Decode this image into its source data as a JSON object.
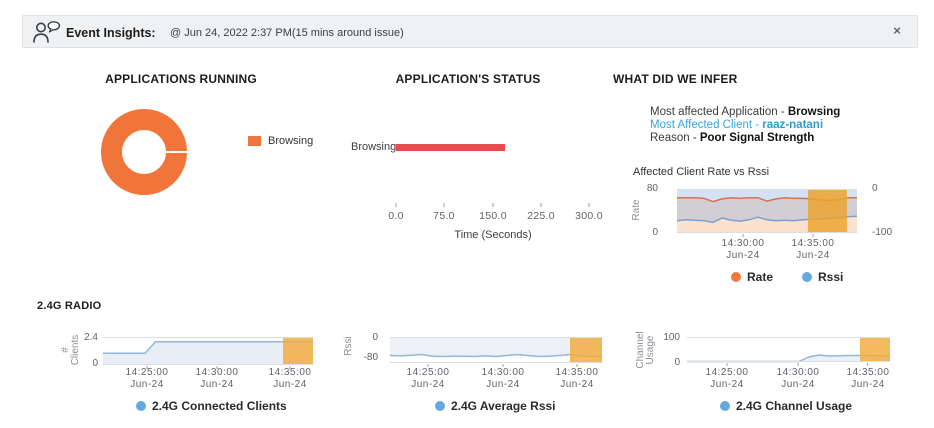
{
  "colors": {
    "donut_orange": "#f0753b",
    "bar_red": "#ea4b50",
    "legend_dot_blue": "#64a9de",
    "rate_dot_orange": "#ef7a3d",
    "accent_blue": "#38a5d8",
    "band_orange": "#f3ab3f"
  },
  "header": {
    "title": "Event Insights:",
    "timestamp": "@ Jun 24, 2022 2:37 PM(15 mins around issue)",
    "close_label": "×",
    "icon": "person-chat-icon"
  },
  "sections": {
    "applications_running": {
      "title": "APPLICATIONS RUNNING",
      "legend": "Browsing"
    },
    "application_status": {
      "title": "APPLICATION'S STATUS",
      "xlabel": "Time (Seconds)"
    },
    "infer": {
      "title": "WHAT DID WE INFER",
      "lines": [
        {
          "prefix": "Most affected Application - ",
          "value": "Browsing"
        },
        {
          "prefix": "Most Affected Client - ",
          "value": "raaz-natani"
        },
        {
          "prefix": "Reason - ",
          "value": "Poor Signal Strength"
        }
      ]
    }
  },
  "radio_label": "2.4G RADIO",
  "chart_data": [
    {
      "type": "pie",
      "donut": true,
      "title": "APPLICATIONS RUNNING",
      "labels": [
        "Browsing"
      ],
      "values": [
        100
      ],
      "colors": [
        "#f0753b"
      ]
    },
    {
      "type": "bar",
      "orientation": "horizontal",
      "title": "APPLICATION'S STATUS",
      "categories": [
        "Browsing"
      ],
      "values": [
        170
      ],
      "xlim": [
        0,
        300
      ],
      "xticks": [
        "0.0",
        "75.0",
        "150.0",
        "225.0",
        "300.0"
      ],
      "xlabel": "Time (Seconds)",
      "bar_color": "#ea4b50"
    },
    {
      "type": "line",
      "title": "Affected Client Rate vs Rssi",
      "left_axis": {
        "label": "Rate",
        "ticks": [
          "80",
          "0"
        ],
        "ylim": [
          0,
          80
        ]
      },
      "right_axis": {
        "ticks": [
          "0",
          "-100"
        ],
        "ylim": [
          -100,
          0
        ]
      },
      "x_ticks": [
        {
          "label": "14:30:00",
          "sub": "Jun-24",
          "pos": 0.367
        },
        {
          "label": "14:35:00",
          "sub": "Jun-24",
          "pos": 0.756
        }
      ],
      "series": [
        {
          "name": "Rate",
          "axis": "left",
          "color": "#d9714e",
          "fill": "rgba(245,150,80,0.28)",
          "fill_dir": "below",
          "values": [
            64,
            64,
            64,
            63,
            57,
            62,
            64,
            63,
            64,
            64,
            58,
            62,
            64,
            63,
            63,
            62,
            60,
            59,
            61,
            64,
            64
          ]
        },
        {
          "name": "Rssi",
          "axis": "right",
          "color": "#7b9fd1",
          "fill": "rgba(120,170,225,0.33)",
          "fill_dir": "above",
          "values": [
            -72,
            -70,
            -71,
            -72,
            -76,
            -66,
            -71,
            -73,
            -70,
            -64,
            -70,
            -72,
            -71,
            -72,
            -70,
            -69,
            -68,
            -67,
            -65,
            -63,
            -62
          ]
        }
      ],
      "highlight_band": {
        "from": 0.728,
        "to": 0.944,
        "color": "#eca32d"
      },
      "legend": [
        {
          "label": "Rate",
          "color": "#ef7a3d"
        },
        {
          "label": "Rssi",
          "color": "#64a9de"
        }
      ]
    },
    {
      "type": "line",
      "title": "2.4G Connected Clients",
      "ylabel_lines": [
        "#",
        "Clients"
      ],
      "yticks": [
        "2.4",
        "0"
      ],
      "ylim": [
        0,
        2.4
      ],
      "x_ticks": [
        {
          "label": "14:25:00",
          "sub": "Jun-24",
          "pos": 0.21
        },
        {
          "label": "14:30:00",
          "sub": "Jun-24",
          "pos": 0.543
        },
        {
          "label": "14:35:00",
          "sub": "Jun-24",
          "pos": 0.89
        }
      ],
      "series": [
        {
          "name": "2.4G Connected Clients",
          "color": "#8fb8dc",
          "fill": "#e9eef6",
          "fill_dir": "below",
          "values": [
            1,
            1,
            1,
            1,
            1,
            2,
            2,
            2,
            2,
            2,
            2,
            2,
            2,
            2,
            2,
            2,
            2,
            2,
            2,
            2,
            2
          ]
        }
      ],
      "highlight_band": {
        "from": 0.857,
        "to": 1.0,
        "color": "#f3ab3f"
      },
      "legend": [
        {
          "label": "2.4G Connected Clients",
          "color": "#64a9de"
        }
      ]
    },
    {
      "type": "line",
      "title": "2.4G Average Rssi",
      "ylabel_lines": [
        "Rssi"
      ],
      "yticks": [
        "0",
        "-80"
      ],
      "ylim": [
        -80,
        0
      ],
      "x_ticks": [
        {
          "label": "14:25:00",
          "sub": "Jun-24",
          "pos": 0.179
        },
        {
          "label": "14:30:00",
          "sub": "Jun-24",
          "pos": 0.533
        },
        {
          "label": "14:35:00",
          "sub": "Jun-24",
          "pos": 0.882
        }
      ],
      "series": [
        {
          "name": "2.4G Average Rssi",
          "color": "#8fb8dc",
          "fill": "#edf1f7",
          "fill_dir": "above",
          "values": [
            -57,
            -58,
            -56,
            -54,
            -59,
            -60,
            -59,
            -59,
            -60,
            -58,
            -60,
            -57,
            -54,
            -57,
            -60,
            -59,
            -57,
            -54,
            -58,
            -61,
            -59
          ]
        }
      ],
      "highlight_band": {
        "from": 0.849,
        "to": 1.0,
        "color": "#f3ab3f"
      },
      "legend": [
        {
          "label": "2.4G Average Rssi",
          "color": "#64a9de"
        }
      ]
    },
    {
      "type": "line",
      "title": "2.4G Channel Usage",
      "ylabel_lines": [
        "Channel",
        "Usage"
      ],
      "yticks": [
        "100",
        "0"
      ],
      "ylim": [
        0,
        100
      ],
      "x_ticks": [
        {
          "label": "14:25:00",
          "sub": "Jun-24",
          "pos": 0.197
        },
        {
          "label": "14:30:00",
          "sub": "Jun-24",
          "pos": 0.547
        },
        {
          "label": "14:35:00",
          "sub": "Jun-24",
          "pos": 0.89
        }
      ],
      "series": [
        {
          "name": "2.4G Channel Usage",
          "color": "#8fb8dc",
          "fill": "#edf1f7",
          "fill_dir": "below",
          "values": [
            2,
            2,
            2,
            2,
            2,
            2,
            2,
            2,
            2,
            2,
            2,
            2,
            20,
            28,
            24,
            25,
            26,
            26,
            27,
            25,
            22
          ]
        }
      ],
      "highlight_band": {
        "from": 0.852,
        "to": 1.0,
        "color": "#f3ab3f"
      },
      "legend": [
        {
          "label": "2.4G Channel Usage",
          "color": "#64a9de"
        }
      ]
    }
  ]
}
